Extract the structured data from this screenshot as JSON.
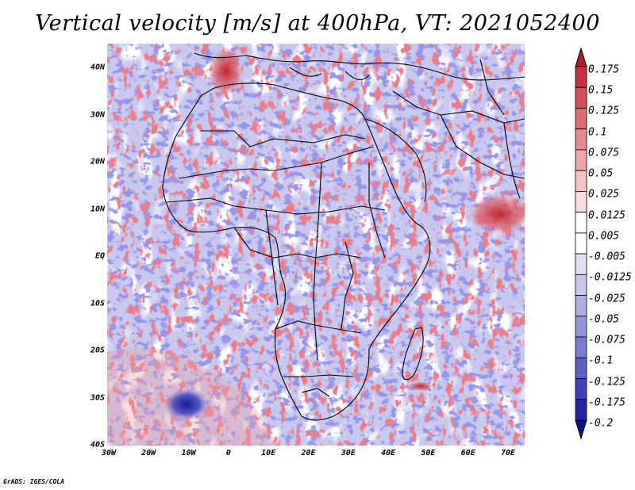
{
  "title": "Vertical velocity [m/s] at 400hPa, VT: 2021052400",
  "footer": "GrADS: IGES/COLA",
  "map": {
    "lat_labels": [
      "40N",
      "30N",
      "20N",
      "10N",
      "EQ",
      "10S",
      "20S",
      "30S",
      "40S"
    ],
    "lon_labels": [
      "30W",
      "20W",
      "10W",
      "0",
      "10E",
      "20E",
      "30E",
      "40E",
      "50E",
      "60E",
      "70E"
    ],
    "lat_range": [
      -40,
      45
    ],
    "lon_range": [
      -30,
      75
    ]
  },
  "colorbar": {
    "labels": [
      "0.175",
      "0.15",
      "0.125",
      "0.1",
      "0.075",
      "0.05",
      "0.025",
      "0.0125",
      "0.005",
      "-0.005",
      "-0.0125",
      "-0.025",
      "-0.05",
      "-0.075",
      "-0.1",
      "-0.125",
      "-0.175",
      "-0.2"
    ],
    "colors": [
      "#b2182b",
      "#c8313d",
      "#d84d56",
      "#e06a70",
      "#e8888c",
      "#efa5a7",
      "#f5c2c3",
      "#f9dcdc",
      "#ffffff",
      "#ffffff",
      "#dedef5",
      "#c6c6ee",
      "#adade6",
      "#9494dd",
      "#7b7bd3",
      "#5e5ec7",
      "#4040b8",
      "#2424a8",
      "#10108f"
    ]
  },
  "colors": {
    "background": "#dcdcf5",
    "positive": "#e06060",
    "negative": "#6868d8",
    "border": "#000000"
  }
}
